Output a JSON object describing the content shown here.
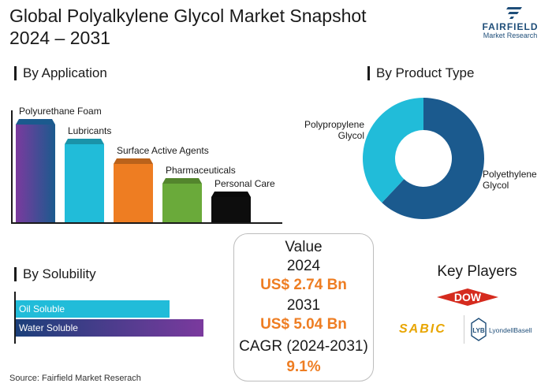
{
  "title": "Global Polyalkylene Glycol Market Snapshot",
  "subtitle": "2024 – 2031",
  "brand": {
    "name": "FAIRFIELD",
    "tagline": "Market Research",
    "color": "#1f4e79"
  },
  "sections": {
    "application": "By Application",
    "product_type": "By Product Type",
    "solubility": "By Solubility"
  },
  "value_box": {
    "heading": "Value",
    "year_start": "2024",
    "value_start": "US$ 2.74 Bn",
    "year_end": "2031",
    "value_end": "US$ 5.04 Bn",
    "cagr_label": "CAGR (2024-2031)",
    "cagr_value": "9.1%"
  },
  "key_players": {
    "title": "Key Players",
    "logos": [
      "DOW",
      "SABIC",
      "LYB",
      "LyondellBasell"
    ]
  },
  "source": "Source: Fairfield Market Reserach",
  "colors": {
    "accent_orange": "#ee7d22",
    "dow_red": "#d52b1e",
    "sabic_yellow": "#e8a500",
    "lyb_blue": "#1f4e79"
  },
  "chart_data": [
    {
      "type": "bar",
      "categories": [
        "Polyurethane Foam",
        "Lubricants",
        "Surface Active Agents",
        "Pharmaceuticals",
        "Personal Care"
      ],
      "values": [
        5,
        4,
        3,
        2,
        1.3
      ],
      "colors": [
        "#5b3a8e",
        "#21bcd9",
        "#ee7d22",
        "#6aaa3a",
        "#0d0d0d"
      ],
      "ylim": [
        0,
        5.5
      ]
    },
    {
      "type": "pie",
      "labels": [
        "Polyethylene Glycol",
        "Polypropylene Glycol"
      ],
      "values": [
        62,
        38
      ],
      "colors": [
        "#1b5a8e",
        "#21bcd9"
      ]
    },
    {
      "type": "bar",
      "orientation": "horizontal",
      "categories": [
        "Oil Soluble",
        "Water Soluble"
      ],
      "values": [
        82,
        100
      ],
      "colors": [
        "#21bcd9",
        "#1b3f7a"
      ],
      "xlim": [
        0,
        100
      ]
    }
  ]
}
